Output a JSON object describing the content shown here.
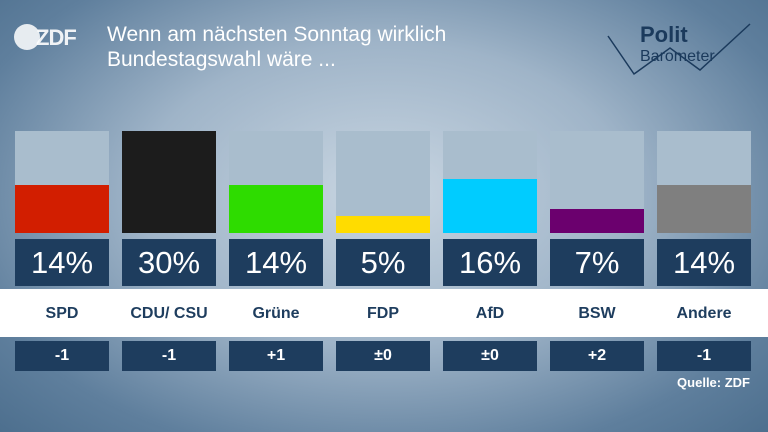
{
  "logo": {
    "text": "ZDF"
  },
  "title": "Wenn am nächsten Sonntag wirklich Bundestagswahl wäre ...",
  "brand": {
    "line1": "Polit",
    "line2": "Barometer"
  },
  "source": "Quelle: ZDF",
  "chart_data": {
    "type": "bar",
    "categories": [
      "SPD",
      "CDU/ CSU",
      "Grüne",
      "FDP",
      "AfD",
      "BSW",
      "Andere"
    ],
    "values": [
      14,
      30,
      14,
      5,
      16,
      7,
      14
    ],
    "value_labels": [
      "14%",
      "30%",
      "14%",
      "5%",
      "16%",
      "7%",
      "14%"
    ],
    "changes": [
      "-1",
      "-1",
      "+1",
      "±0",
      "±0",
      "+2",
      "-1"
    ],
    "colors": [
      "#d21e00",
      "#1c1c1c",
      "#2edc00",
      "#ffdc00",
      "#00ccff",
      "#6b006e",
      "#7f7f7f"
    ],
    "ylim": [
      0,
      30
    ],
    "title": "Wenn am nächsten Sonntag wirklich Bundestagswahl wäre ...",
    "xlabel": "",
    "ylabel": ""
  }
}
